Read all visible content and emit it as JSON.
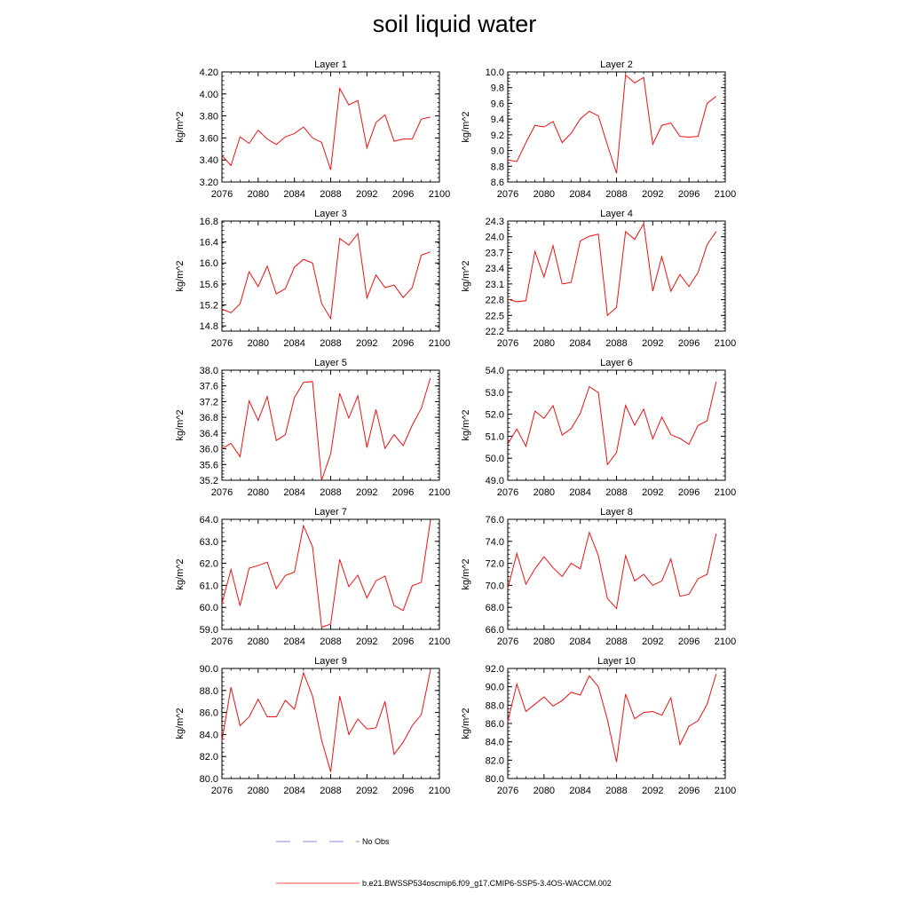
{
  "title": "soil liquid water",
  "legend": {
    "obs_label": "No Obs",
    "obs_color": "#5566cc",
    "model_label": "b.e21.BWSSP534oscmip6.f09_g17.CMIP6-SSP5-3.4OS-WACCM.002",
    "model_color": "#ee1111"
  },
  "chart_data": [
    {
      "type": "line",
      "title": "Layer 1",
      "ylabel": "kg/m^2",
      "xlim": [
        2076,
        2100
      ],
      "ylim": [
        3.2,
        4.2
      ],
      "yticks": [
        "3.20",
        "3.40",
        "3.60",
        "3.80",
        "4.00",
        "4.20"
      ],
      "xticks": [
        "2076",
        "2080",
        "2084",
        "2088",
        "2092",
        "2096",
        "2100"
      ],
      "x": [
        2076,
        2077,
        2078,
        2079,
        2080,
        2081,
        2082,
        2083,
        2084,
        2085,
        2086,
        2087,
        2088,
        2089,
        2090,
        2091,
        2092,
        2093,
        2094,
        2095,
        2096,
        2097,
        2098,
        2099
      ],
      "values": [
        3.44,
        3.35,
        3.61,
        3.55,
        3.67,
        3.59,
        3.54,
        3.61,
        3.64,
        3.7,
        3.6,
        3.56,
        3.31,
        4.05,
        3.9,
        3.94,
        3.51,
        3.74,
        3.81,
        3.57,
        3.59,
        3.59,
        3.77,
        3.79
      ]
    },
    {
      "type": "line",
      "title": "Layer 2",
      "ylabel": "kg/m^2",
      "xlim": [
        2076,
        2100
      ],
      "ylim": [
        8.6,
        10.0
      ],
      "yticks": [
        "8.6",
        "8.8",
        "9.0",
        "9.2",
        "9.4",
        "9.6",
        "9.8",
        "10.0"
      ],
      "xticks": [
        "2076",
        "2080",
        "2084",
        "2088",
        "2092",
        "2096",
        "2100"
      ],
      "x": [
        2076,
        2077,
        2078,
        2079,
        2080,
        2081,
        2082,
        2083,
        2084,
        2085,
        2086,
        2087,
        2088,
        2089,
        2090,
        2091,
        2092,
        2093,
        2094,
        2095,
        2096,
        2097,
        2098,
        2099
      ],
      "values": [
        8.88,
        8.86,
        9.1,
        9.32,
        9.3,
        9.37,
        9.1,
        9.22,
        9.4,
        9.5,
        9.44,
        9.07,
        8.71,
        9.96,
        9.86,
        9.93,
        9.08,
        9.32,
        9.35,
        9.18,
        9.17,
        9.18,
        9.6,
        9.69
      ]
    },
    {
      "type": "line",
      "title": "Layer 3",
      "ylabel": "kg/m^2",
      "xlim": [
        2076,
        2100
      ],
      "ylim": [
        14.7,
        16.8
      ],
      "yticks": [
        "14.8",
        "15.2",
        "15.6",
        "16.0",
        "16.4",
        "16.8"
      ],
      "xticks": [
        "2076",
        "2080",
        "2084",
        "2088",
        "2092",
        "2096",
        "2100"
      ],
      "x": [
        2076,
        2077,
        2078,
        2079,
        2080,
        2081,
        2082,
        2083,
        2084,
        2085,
        2086,
        2087,
        2088,
        2089,
        2090,
        2091,
        2092,
        2093,
        2094,
        2095,
        2096,
        2097,
        2098,
        2099
      ],
      "values": [
        15.12,
        15.05,
        15.22,
        15.83,
        15.55,
        15.94,
        15.41,
        15.51,
        15.92,
        16.07,
        16.0,
        15.23,
        14.94,
        16.47,
        16.34,
        16.56,
        15.33,
        15.77,
        15.53,
        15.58,
        15.34,
        15.53,
        16.15,
        16.21
      ]
    },
    {
      "type": "line",
      "title": "Layer 4",
      "ylabel": "kg/m^2",
      "xlim": [
        2076,
        2100
      ],
      "ylim": [
        22.2,
        24.3
      ],
      "yticks": [
        "22.2",
        "22.5",
        "22.8",
        "23.1",
        "23.4",
        "23.7",
        "24.0",
        "24.3"
      ],
      "xticks": [
        "2076",
        "2080",
        "2084",
        "2088",
        "2092",
        "2096",
        "2100"
      ],
      "x": [
        2076,
        2077,
        2078,
        2079,
        2080,
        2081,
        2082,
        2083,
        2084,
        2085,
        2086,
        2087,
        2088,
        2089,
        2090,
        2091,
        2092,
        2093,
        2094,
        2095,
        2096,
        2097,
        2098,
        2099
      ],
      "values": [
        22.81,
        22.76,
        22.78,
        23.72,
        23.23,
        23.83,
        23.1,
        23.13,
        23.92,
        24.01,
        24.05,
        22.5,
        22.65,
        24.1,
        23.95,
        24.25,
        22.96,
        23.62,
        22.96,
        23.28,
        23.05,
        23.32,
        23.85,
        24.1
      ]
    },
    {
      "type": "line",
      "title": "Layer 5",
      "ylabel": "kg/m^2",
      "xlim": [
        2076,
        2100
      ],
      "ylim": [
        35.2,
        38.0
      ],
      "yticks": [
        "35.2",
        "35.6",
        "36.0",
        "36.4",
        "36.8",
        "37.2",
        "37.6",
        "38.0"
      ],
      "xticks": [
        "2076",
        "2080",
        "2084",
        "2088",
        "2092",
        "2096",
        "2100"
      ],
      "x": [
        2076,
        2077,
        2078,
        2079,
        2080,
        2081,
        2082,
        2083,
        2084,
        2085,
        2086,
        2087,
        2088,
        2089,
        2090,
        2091,
        2092,
        2093,
        2094,
        2095,
        2096,
        2097,
        2098,
        2099
      ],
      "values": [
        36.0,
        36.14,
        35.8,
        37.22,
        36.72,
        37.33,
        36.21,
        36.36,
        37.3,
        37.69,
        37.71,
        35.2,
        35.87,
        37.41,
        36.78,
        37.35,
        36.03,
        37.0,
        36.01,
        36.36,
        36.08,
        36.6,
        37.03,
        37.8
      ]
    },
    {
      "type": "line",
      "title": "Layer 6",
      "ylabel": "kg/m^2",
      "xlim": [
        2076,
        2100
      ],
      "ylim": [
        49.0,
        54.0
      ],
      "yticks": [
        "49.0",
        "50.0",
        "51.0",
        "52.0",
        "53.0",
        "54.0"
      ],
      "xticks": [
        "2076",
        "2080",
        "2084",
        "2088",
        "2092",
        "2096",
        "2100"
      ],
      "x": [
        2076,
        2077,
        2078,
        2079,
        2080,
        2081,
        2082,
        2083,
        2084,
        2085,
        2086,
        2087,
        2088,
        2089,
        2090,
        2091,
        2092,
        2093,
        2094,
        2095,
        2096,
        2097,
        2098,
        2099
      ],
      "values": [
        50.64,
        51.33,
        50.54,
        52.14,
        51.81,
        52.39,
        51.05,
        51.35,
        52.04,
        53.25,
        52.98,
        49.71,
        50.26,
        52.4,
        51.5,
        52.23,
        50.88,
        51.87,
        51.07,
        50.9,
        50.63,
        51.49,
        51.7,
        53.47
      ]
    },
    {
      "type": "line",
      "title": "Layer 7",
      "ylabel": "kg/m^2",
      "xlim": [
        2076,
        2100
      ],
      "ylim": [
        59.0,
        64.0
      ],
      "yticks": [
        "59.0",
        "60.0",
        "61.0",
        "62.0",
        "63.0",
        "64.0"
      ],
      "xticks": [
        "2076",
        "2080",
        "2084",
        "2088",
        "2092",
        "2096",
        "2100"
      ],
      "x": [
        2076,
        2077,
        2078,
        2079,
        2080,
        2081,
        2082,
        2083,
        2084,
        2085,
        2086,
        2087,
        2088,
        2089,
        2090,
        2091,
        2092,
        2093,
        2094,
        2095,
        2096,
        2097,
        2098,
        2099
      ],
      "values": [
        60.18,
        61.72,
        60.07,
        61.78,
        61.9,
        62.05,
        60.85,
        61.45,
        61.6,
        63.71,
        62.75,
        59.1,
        59.24,
        62.18,
        60.94,
        61.46,
        60.43,
        61.21,
        61.42,
        60.08,
        59.86,
        60.98,
        61.14,
        63.93
      ]
    },
    {
      "type": "line",
      "title": "Layer 8",
      "ylabel": "kg/m^2",
      "xlim": [
        2076,
        2100
      ],
      "ylim": [
        66.0,
        76.0
      ],
      "yticks": [
        "66.0",
        "68.0",
        "70.0",
        "72.0",
        "74.0",
        "76.0"
      ],
      "xticks": [
        "2076",
        "2080",
        "2084",
        "2088",
        "2092",
        "2096",
        "2100"
      ],
      "x": [
        2076,
        2077,
        2078,
        2079,
        2080,
        2081,
        2082,
        2083,
        2084,
        2085,
        2086,
        2087,
        2088,
        2089,
        2090,
        2091,
        2092,
        2093,
        2094,
        2095,
        2096,
        2097,
        2098,
        2099
      ],
      "values": [
        69.7,
        72.9,
        70.1,
        71.5,
        72.6,
        71.6,
        70.8,
        72.0,
        71.5,
        74.8,
        72.7,
        68.8,
        67.9,
        72.7,
        70.4,
        71.0,
        70.0,
        70.4,
        72.4,
        69.0,
        69.2,
        70.6,
        71.0,
        74.7
      ]
    },
    {
      "type": "line",
      "title": "Layer 9",
      "ylabel": "kg/m^2",
      "xlim": [
        2076,
        2100
      ],
      "ylim": [
        80.0,
        90.0
      ],
      "yticks": [
        "80.0",
        "82.0",
        "84.0",
        "86.0",
        "88.0",
        "90.0"
      ],
      "xticks": [
        "2076",
        "2080",
        "2084",
        "2088",
        "2092",
        "2096",
        "2100"
      ],
      "x": [
        2076,
        2077,
        2078,
        2079,
        2080,
        2081,
        2082,
        2083,
        2084,
        2085,
        2086,
        2087,
        2088,
        2089,
        2090,
        2091,
        2092,
        2093,
        2094,
        2095,
        2096,
        2097,
        2098,
        2099
      ],
      "values": [
        83.4,
        88.3,
        84.8,
        85.6,
        87.2,
        85.6,
        85.6,
        87.1,
        86.3,
        89.6,
        87.5,
        83.5,
        80.6,
        87.5,
        84.0,
        85.4,
        84.5,
        84.6,
        87.0,
        82.2,
        83.3,
        84.8,
        85.8,
        89.8
      ]
    },
    {
      "type": "line",
      "title": "Layer 10",
      "ylabel": "kg/m^2",
      "xlim": [
        2076,
        2100
      ],
      "ylim": [
        80.0,
        92.0
      ],
      "yticks": [
        "80.0",
        "82.0",
        "84.0",
        "86.0",
        "88.0",
        "90.0",
        "92.0"
      ],
      "xticks": [
        "2076",
        "2080",
        "2084",
        "2088",
        "2092",
        "2096",
        "2100"
      ],
      "x": [
        2076,
        2077,
        2078,
        2079,
        2080,
        2081,
        2082,
        2083,
        2084,
        2085,
        2086,
        2087,
        2088,
        2089,
        2090,
        2091,
        2092,
        2093,
        2094,
        2095,
        2096,
        2097,
        2098,
        2099
      ],
      "values": [
        86.2,
        90.3,
        87.3,
        88.1,
        88.9,
        87.9,
        88.5,
        89.4,
        89.1,
        91.2,
        90.0,
        86.4,
        81.8,
        89.2,
        86.5,
        87.2,
        87.3,
        86.9,
        88.8,
        83.7,
        85.7,
        86.3,
        88.1,
        91.4
      ]
    }
  ]
}
